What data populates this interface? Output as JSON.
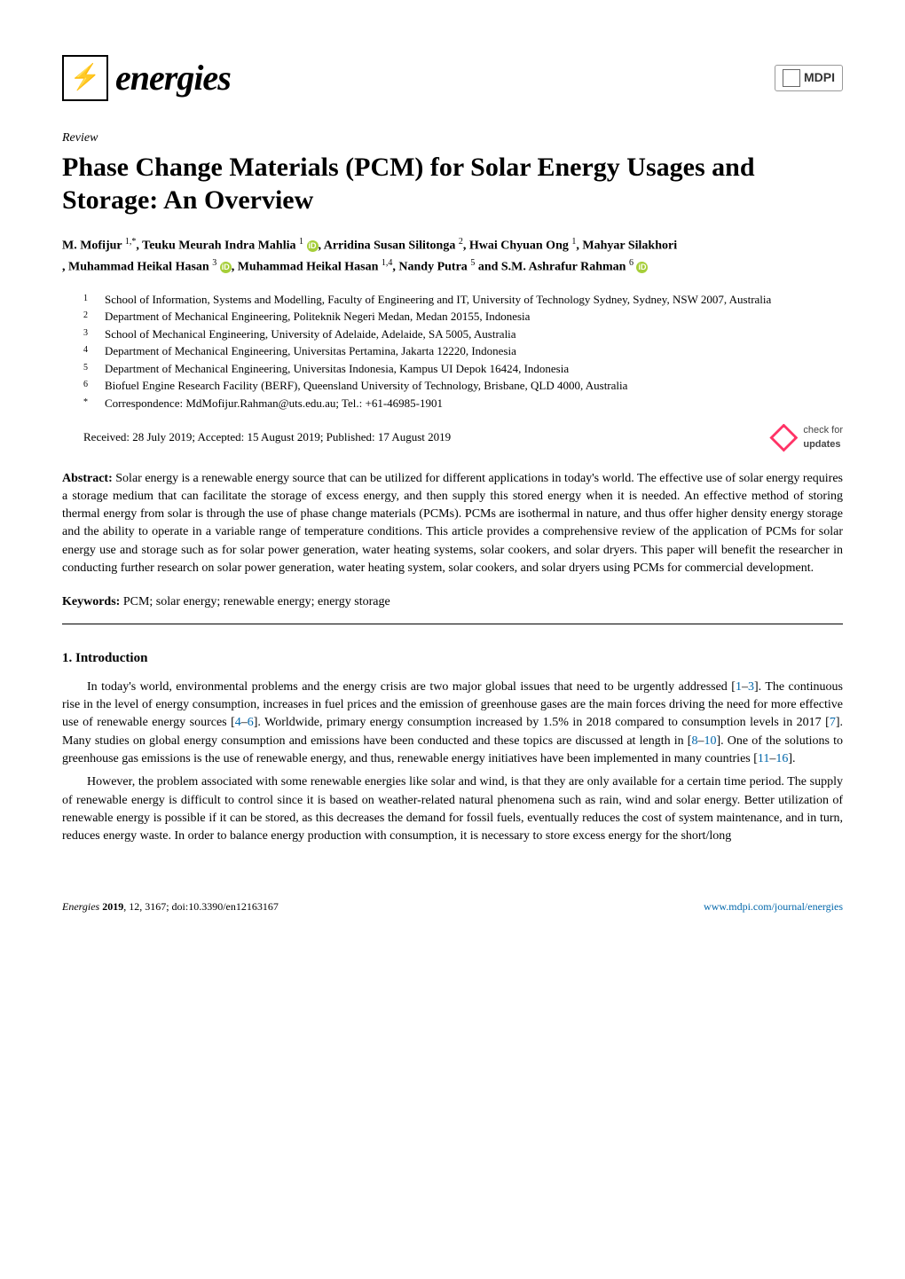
{
  "journal": {
    "name": "energies",
    "publisher": "MDPI",
    "logo_color": "#7aa843",
    "logo_glyph": "⚡"
  },
  "article_type": "Review",
  "title": "Phase Change Materials (PCM) for Solar Energy Usages and Storage: An Overview",
  "authors_html_parts": {
    "a1": "M. Mofijur ",
    "a1s": "1,",
    "a1star": "*",
    "sep1": ", Teuku Meurah Indra Mahlia ",
    "a2s": "1",
    "sep2": ", Arridina Susan Silitonga ",
    "a3s": "2",
    "sep3": ", Hwai Chyuan Ong ",
    "a4s": "1",
    "sep4": ", Mahyar Silakhori ",
    "a5s": "3",
    "sep5": ", Muhammad Heikal Hasan ",
    "a6s": "1,4",
    "sep6": ", Nandy Putra ",
    "a7s": "5",
    "sep7": " and S.M. Ashrafur Rahman ",
    "a8s": "6"
  },
  "orcid_glyph": "iD",
  "affiliations": [
    {
      "n": "1",
      "t": "School of Information, Systems and Modelling, Faculty of Engineering and IT, University of Technology Sydney, Sydney, NSW 2007, Australia"
    },
    {
      "n": "2",
      "t": "Department of Mechanical Engineering, Politeknik Negeri Medan, Medan 20155, Indonesia"
    },
    {
      "n": "3",
      "t": "School of Mechanical Engineering, University of Adelaide, Adelaide, SA 5005, Australia"
    },
    {
      "n": "4",
      "t": "Department of Mechanical Engineering, Universitas Pertamina, Jakarta 12220, Indonesia"
    },
    {
      "n": "5",
      "t": "Department of Mechanical Engineering, Universitas Indonesia, Kampus UI Depok 16424, Indonesia"
    },
    {
      "n": "6",
      "t": "Biofuel Engine Research Facility (BERF), Queensland University of Technology, Brisbane, QLD 4000, Australia"
    },
    {
      "n": "*",
      "t": "Correspondence: MdMofijur.Rahman@uts.edu.au; Tel.: +61-46985-1901"
    }
  ],
  "dates_line": "Received: 28 July 2019; Accepted: 15 August 2019; Published: 17 August 2019",
  "check_updates": {
    "line1": "check for",
    "line2": "updates"
  },
  "abstract_label": "Abstract:",
  "abstract": " Solar energy is a renewable energy source that can be utilized for different applications in today's world. The effective use of solar energy requires a storage medium that can facilitate the storage of excess energy, and then supply this stored energy when it is needed. An effective method of storing thermal energy from solar is through the use of phase change materials (PCMs). PCMs are isothermal in nature, and thus offer higher density energy storage and the ability to operate in a variable range of temperature conditions. This article provides a comprehensive review of the application of PCMs for solar energy use and storage such as for solar power generation, water heating systems, solar cookers, and solar dryers. This paper will benefit the researcher in conducting further research on solar power generation, water heating system, solar cookers, and solar dryers using PCMs for commercial development.",
  "keywords_label": "Keywords:",
  "keywords": " PCM; solar energy; renewable energy; energy storage",
  "section1_heading": "1. Introduction",
  "p1": {
    "t1": "In today's world, environmental problems and the energy crisis are two major global issues that need to be urgently addressed [",
    "c1": "1",
    "dash1": "–",
    "c2": "3",
    "t2": "]. The continuous rise in the level of energy consumption, increases in fuel prices and the emission of greenhouse gases are the main forces driving the need for more effective use of renewable energy sources [",
    "c3": "4",
    "dash2": "–",
    "c4": "6",
    "t3": "]. Worldwide, primary energy consumption increased by 1.5% in 2018 compared to consumption levels in 2017 [",
    "c5": "7",
    "t4": "]. Many studies on global energy consumption and emissions have been conducted and these topics are discussed at length in [",
    "c6": "8",
    "dash3": "–",
    "c7": "10",
    "t5": "]. One of the solutions to greenhouse gas emissions is the use of renewable energy, and thus, renewable energy initiatives have been implemented in many countries [",
    "c8": "11",
    "dash4": "–",
    "c9": "16",
    "t6": "]."
  },
  "p2": "However, the problem associated with some renewable energies like solar and wind, is that they are only available for a certain time period. The supply of renewable energy is difficult to control since it is based on weather-related natural phenomena such as rain, wind and solar energy. Better utilization of renewable energy is possible if it can be stored, as this decreases the demand for fossil fuels, eventually reduces the cost of system maintenance, and in turn, reduces energy waste. In order to balance energy production with consumption, it is necessary to store excess energy for the short/long",
  "footer": {
    "left_italic": "Energies ",
    "left_bold": "2019",
    "left_rest": ", 12, 3167; doi:10.3390/en12163167",
    "right": "www.mdpi.com/journal/energies"
  },
  "colors": {
    "citation": "#0066aa",
    "orcid_bg": "#a6ce39",
    "check_icon": "#ff3366"
  }
}
